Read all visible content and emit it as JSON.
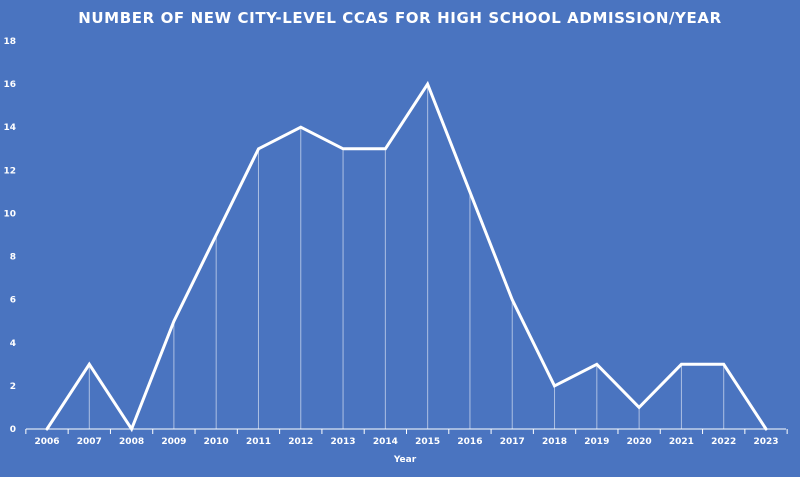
{
  "chart_data": {
    "type": "line",
    "title": "NUMBER OF NEW CITY-LEVEL CCAS FOR HIGH SCHOOL ADMISSION/YEAR",
    "xlabel": "Year",
    "ylabel": "",
    "categories": [
      "2006",
      "2007",
      "2008",
      "2009",
      "2010",
      "2011",
      "2012",
      "2013",
      "2014",
      "2015",
      "2016",
      "2017",
      "2018",
      "2019",
      "2020",
      "2021",
      "2022",
      "2023"
    ],
    "series": [
      {
        "values": [
          0,
          3,
          0,
          5,
          9,
          13,
          14,
          13,
          13,
          16,
          11,
          6,
          2,
          3,
          1,
          3,
          3,
          0
        ]
      }
    ],
    "ylim": [
      0,
      18
    ],
    "yticks": [
      "0",
      "2",
      "4",
      "6",
      "8",
      "10",
      "12",
      "14",
      "16",
      "18"
    ],
    "grid": false,
    "drop_lines": true,
    "legend": "none",
    "colors": {
      "background": "#4a74c0",
      "line": "#ffffff",
      "text": "#ffffff"
    }
  }
}
